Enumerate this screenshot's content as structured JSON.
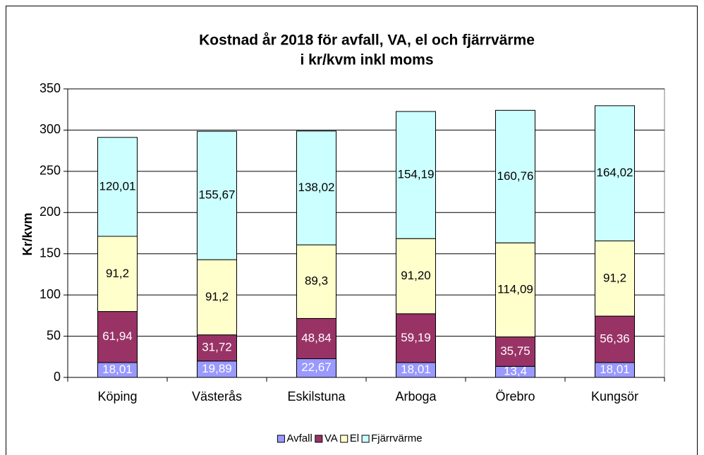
{
  "chart_data": {
    "type": "stacked_bar",
    "title": [
      "Kostnad år 2018 för avfall, VA, el och fjärrvärme",
      "i kr/kvm inkl moms"
    ],
    "ylabel": "Kr/kvm",
    "categories": [
      "Köping",
      "Västerås",
      "Eskilstuna",
      "Arboga",
      "Örebro",
      "Kungsör"
    ],
    "series": [
      {
        "name": "Avfall",
        "color": "#9999ff",
        "label_color": "#ffffff",
        "values": [
          18.01,
          19.89,
          22.67,
          18.01,
          13.4,
          18.01
        ],
        "value_labels": [
          "18,01",
          "19,89",
          "22,67",
          "18,01",
          "13,4",
          "18,01"
        ]
      },
      {
        "name": "VA",
        "color": "#993366",
        "label_color": "#ffffff",
        "values": [
          61.94,
          31.72,
          48.84,
          59.19,
          35.75,
          56.36
        ],
        "value_labels": [
          "61,94",
          "31,72",
          "48,84",
          "59,19",
          "35,75",
          "56,36"
        ]
      },
      {
        "name": "El",
        "color": "#ffffcc",
        "label_color": "#000000",
        "values": [
          91.2,
          91.2,
          89.3,
          91.2,
          114.09,
          91.2
        ],
        "value_labels": [
          "91,2",
          "91,2",
          "89,3",
          "91,20",
          "114,09",
          "91,2"
        ]
      },
      {
        "name": "Fjärrvärme",
        "color": "#ccffff",
        "label_color": "#000000",
        "values": [
          120.01,
          155.67,
          138.02,
          154.19,
          160.76,
          164.02
        ],
        "value_labels": [
          "120,01",
          "155,67",
          "138,02",
          "154,19",
          "160,76",
          "164,02"
        ]
      }
    ],
    "ylim": [
      0,
      350
    ],
    "yticks": [
      0,
      50,
      100,
      150,
      200,
      250,
      300,
      350
    ],
    "grid": true,
    "legend": "bottom"
  }
}
